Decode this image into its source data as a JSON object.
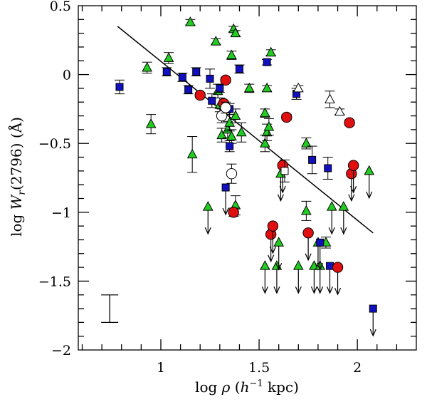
{
  "chart_data": {
    "type": "scatter",
    "title": "",
    "xlabel": {
      "pre": "log ",
      "rho": "ρ",
      "open": " (",
      "h": "h",
      "exp": "−1",
      "post": " kpc)"
    },
    "ylabel": {
      "pre": "log ",
      "W": "W",
      "sub": "r",
      "post": "(2796) (Å)"
    },
    "xlim": [
      0.58,
      2.3
    ],
    "ylim": [
      -2.0,
      0.5
    ],
    "xticks": [
      {
        "v": 1,
        "label": "1"
      },
      {
        "v": 1.5,
        "label": "1.5"
      },
      {
        "v": 2,
        "label": "2"
      }
    ],
    "yticks": [
      {
        "v": 0.5,
        "label": "0.5"
      },
      {
        "v": 0,
        "label": "0"
      },
      {
        "v": -0.5,
        "label": "−0.5"
      },
      {
        "v": -1,
        "label": "−1"
      },
      {
        "v": -1.5,
        "label": "−1.5"
      },
      {
        "v": -2,
        "label": "−2"
      }
    ],
    "colors": {
      "triangle": "#22cc22",
      "square": "#1010c0",
      "circle": "#e01010",
      "axis": "#000000"
    },
    "fit_line": {
      "x": [
        0.78,
        2.08
      ],
      "y": [
        0.35,
        -1.15
      ]
    },
    "typical_error": {
      "x": 0.74,
      "y_low": -1.8,
      "y_high": -1.6
    },
    "series": [
      {
        "name": "green-triangles",
        "marker": "triangle",
        "fill": "#22cc22",
        "points": [
          {
            "x": 0.93,
            "y": 0.05,
            "err": 0.04
          },
          {
            "x": 1.04,
            "y": 0.12,
            "err": 0.04
          },
          {
            "x": 0.95,
            "y": -0.36,
            "err": 0.07
          },
          {
            "x": 1.15,
            "y": 0.38,
            "err": 0.02
          },
          {
            "x": 1.16,
            "y": -0.58,
            "err": 0.13
          },
          {
            "x": 1.28,
            "y": 0.24,
            "err": 0.02
          },
          {
            "x": 1.29,
            "y": -0.12,
            "err": 0.05
          },
          {
            "x": 1.3,
            "y": -0.22,
            "err": 0.05
          },
          {
            "x": 1.31,
            "y": -0.44,
            "err": 0.05
          },
          {
            "x": 1.34,
            "y": -0.4,
            "err": 0.06
          },
          {
            "x": 1.35,
            "y": -0.35,
            "err": 0.06
          },
          {
            "x": 1.36,
            "y": -0.45,
            "err": 0.05
          },
          {
            "x": 1.36,
            "y": 0.14,
            "err": 0.03
          },
          {
            "x": 1.37,
            "y": 0.33,
            "err": 0.02
          },
          {
            "x": 1.38,
            "y": 0.3,
            "err": 0.02
          },
          {
            "x": 1.38,
            "y": -0.3,
            "err": 0.05
          },
          {
            "x": 1.38,
            "y": -0.95,
            "err": 0.07
          },
          {
            "x": 1.41,
            "y": -0.42,
            "err": 0.07
          },
          {
            "x": 1.45,
            "y": -0.1,
            "err": 0.03
          },
          {
            "x": 1.53,
            "y": -0.5,
            "err": 0.06
          },
          {
            "x": 1.53,
            "y": -0.28,
            "err": 0.03
          },
          {
            "x": 1.54,
            "y": -0.1,
            "err": 0.02
          },
          {
            "x": 1.54,
            "y": -0.42,
            "err": 0.06
          },
          {
            "x": 1.55,
            "y": -0.38,
            "err": 0.06
          },
          {
            "x": 1.56,
            "y": 0.16,
            "err": 0.02
          },
          {
            "x": 1.74,
            "y": -0.5,
            "err": 0.04
          },
          {
            "x": 1.74,
            "y": -0.99,
            "err": 0.07
          },
          {
            "x": 1.84,
            "y": -1.22,
            "err": 0.04
          }
        ]
      },
      {
        "name": "green-triangle-upper-limits",
        "marker": "triangle",
        "fill": "#22cc22",
        "limit": true,
        "points": [
          {
            "x": 1.24,
            "y": -0.96
          },
          {
            "x": 1.53,
            "y": -1.39
          },
          {
            "x": 1.59,
            "y": -1.39
          },
          {
            "x": 1.6,
            "y": -1.22
          },
          {
            "x": 1.61,
            "y": -0.72
          },
          {
            "x": 1.7,
            "y": -1.39
          },
          {
            "x": 1.78,
            "y": -1.39
          },
          {
            "x": 1.8,
            "y": -1.22
          },
          {
            "x": 1.81,
            "y": -1.39
          },
          {
            "x": 1.87,
            "y": -0.96
          },
          {
            "x": 1.93,
            "y": -0.96
          },
          {
            "x": 2.06,
            "y": -0.7
          }
        ]
      },
      {
        "name": "blue-squares",
        "marker": "square",
        "fill": "#1010c0",
        "points": [
          {
            "x": 0.79,
            "y": -0.09,
            "err": 0.05
          },
          {
            "x": 1.03,
            "y": 0.02,
            "err": 0.03
          },
          {
            "x": 1.11,
            "y": -0.02,
            "err": 0.03
          },
          {
            "x": 1.14,
            "y": -0.11,
            "err": 0.03
          },
          {
            "x": 1.18,
            "y": 0.02,
            "err": 0.03
          },
          {
            "x": 1.25,
            "y": -0.03,
            "err": 0.07
          },
          {
            "x": 1.26,
            "y": -0.19,
            "err": 0.05
          },
          {
            "x": 1.3,
            "y": -0.1,
            "err": 0.03
          },
          {
            "x": 1.35,
            "y": -0.25,
            "err": 0.04
          },
          {
            "x": 1.35,
            "y": -0.52,
            "err": 0.04
          },
          {
            "x": 1.4,
            "y": 0.04,
            "err": 0.03
          },
          {
            "x": 1.54,
            "y": 0.09,
            "err": 0.02
          },
          {
            "x": 1.69,
            "y": -0.14,
            "err": 0.04
          },
          {
            "x": 1.77,
            "y": -0.62,
            "err": 0.1
          },
          {
            "x": 1.85,
            "y": -0.68,
            "err": 0.08
          }
        ]
      },
      {
        "name": "blue-square-upper-limits",
        "marker": "square",
        "fill": "#1010c0",
        "limit": true,
        "points": [
          {
            "x": 1.33,
            "y": -0.82
          },
          {
            "x": 1.81,
            "y": -1.22
          },
          {
            "x": 1.86,
            "y": -1.39
          },
          {
            "x": 2.08,
            "y": -1.7
          }
        ]
      },
      {
        "name": "red-circles",
        "marker": "circle",
        "fill": "#e01010",
        "points": [
          {
            "x": 1.2,
            "y": -0.15,
            "err": 0.02
          },
          {
            "x": 1.32,
            "y": -0.21,
            "err": 0.02
          },
          {
            "x": 1.33,
            "y": -0.04,
            "err": 0.02
          },
          {
            "x": 1.37,
            "y": -1.0,
            "err": 0.03
          },
          {
            "x": 1.64,
            "y": -0.31,
            "err": 0.02
          },
          {
            "x": 1.96,
            "y": -0.35,
            "err": 0.02
          }
        ]
      },
      {
        "name": "red-circle-upper-limits",
        "marker": "circle",
        "fill": "#e01010",
        "limit": true,
        "points": [
          {
            "x": 1.56,
            "y": -1.16
          },
          {
            "x": 1.57,
            "y": -1.1
          },
          {
            "x": 1.62,
            "y": -0.66
          },
          {
            "x": 1.75,
            "y": -1.15
          },
          {
            "x": 1.9,
            "y": -1.4
          },
          {
            "x": 1.97,
            "y": -0.72
          },
          {
            "x": 1.98,
            "y": -0.66
          }
        ]
      },
      {
        "name": "open-triangles",
        "marker": "triangle",
        "fill": "#ffffff",
        "points": [
          {
            "x": 1.7,
            "y": -0.1,
            "err": 0.02
          },
          {
            "x": 1.86,
            "y": -0.18,
            "err": 0.06
          },
          {
            "x": 1.91,
            "y": -0.27,
            "err": 0.02
          }
        ]
      },
      {
        "name": "open-circles",
        "marker": "circle",
        "fill": "#ffffff",
        "points": [
          {
            "x": 1.31,
            "y": -0.3,
            "err": 0.05
          },
          {
            "x": 1.36,
            "y": -0.72,
            "err": 0.07
          },
          {
            "x": 1.33,
            "y": -0.24,
            "err": 0.04
          }
        ]
      },
      {
        "name": "open-squares",
        "marker": "square",
        "fill": "#ffffff",
        "points": [
          {
            "x": 1.63,
            "y": -0.7,
            "err": 0.08
          }
        ]
      }
    ]
  }
}
